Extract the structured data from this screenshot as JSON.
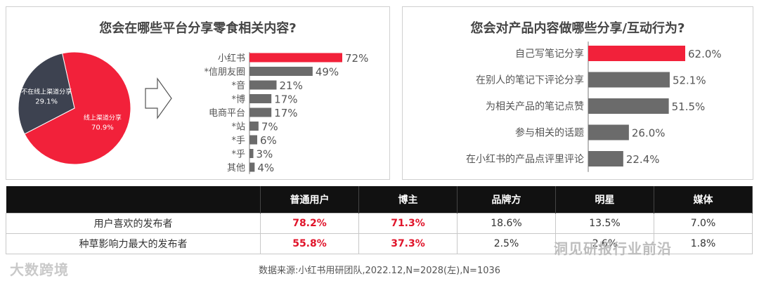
{
  "chart_data": [
    {
      "type": "pie",
      "slices": [
        {
          "label": "线上渠道分享",
          "value": 70.9,
          "value_text": "70.9%",
          "color": "#f2213a"
        },
        {
          "label": "不在线上渠道分享",
          "value": 29.1,
          "value_text": "29.1%",
          "color": "#3d4250"
        }
      ]
    },
    {
      "type": "bar",
      "orientation": "horizontal",
      "title": "您会在哪些平台分享零食相关内容?",
      "categories": [
        "小红书",
        "*信朋友圈",
        "*音",
        "*博",
        "电商平台",
        "*站",
        "*手",
        "*乎",
        "其他"
      ],
      "values": [
        72,
        49,
        21,
        17,
        17,
        7,
        6,
        3,
        4
      ],
      "value_labels": [
        "72%",
        "49%",
        "21%",
        "17%",
        "17%",
        "7%",
        "6%",
        "3%",
        "4%"
      ],
      "highlight_color": "#f2213a",
      "bar_color": "#6b6b6b"
    },
    {
      "type": "bar",
      "orientation": "horizontal",
      "title": "您会对产品内容做哪些分享/互动行为?",
      "categories": [
        "自己写笔记分享",
        "在别人的笔记下评论分享",
        "为相关产品的笔记点赞",
        "参与相关的话题",
        "在小红书的产品点评里评论"
      ],
      "values": [
        62.0,
        52.1,
        51.5,
        26.0,
        22.4
      ],
      "value_labels": [
        "62.0%",
        "52.1%",
        "51.5%",
        "26.0%",
        "22.4%"
      ],
      "highlight_color": "#f2213a",
      "bar_color": "#6b6b6b"
    },
    {
      "type": "table",
      "columns": [
        "",
        "普通用户",
        "博主",
        "品牌方",
        "明星",
        "媒体"
      ],
      "rows": [
        [
          "用户喜欢的发布者",
          "78.2%",
          "71.3%",
          "18.6%",
          "13.5%",
          "7.0%"
        ],
        [
          "种草影响力最大的发布者",
          "55.8%",
          "37.3%",
          "2.5%",
          "2.6%",
          "1.8%"
        ]
      ]
    }
  ],
  "footer": "数据来源:小红书用研团队,2022.12,N=2028(左),N=1036",
  "watermarks": {
    "left": "大数跨境",
    "right": "洞见研报行业前沿"
  },
  "colors": {
    "red": "#f2213a",
    "dark": "#3d4250",
    "gray": "#6b6b6b"
  }
}
